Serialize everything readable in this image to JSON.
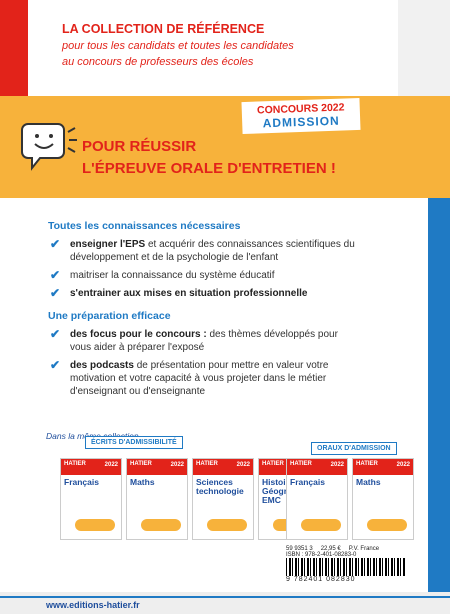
{
  "header": {
    "title": "LA COLLECTION DE RÉFÉRENCE",
    "lines": [
      "pour tous les candidats et toutes les candidates",
      "au concours de professeurs des écoles"
    ]
  },
  "badge": {
    "line1": "CONCOURS 2022",
    "line2": "ADMISSION"
  },
  "headline": [
    "POUR RÉUSSIR",
    "L'ÉPREUVE ORALE D'ENTRETIEN !"
  ],
  "sections": [
    {
      "title": "Toutes les connaissances nécessaires",
      "items": [
        {
          "bold": "enseigner l'EPS",
          "text": " et acquérir des connaissances scientifiques du développement et de la psychologie de l'enfant"
        },
        {
          "text": "maitriser la connaissance du système éducatif"
        },
        {
          "bold": "s'entrainer aux mises en situation professionnelle"
        }
      ]
    },
    {
      "title": "Une préparation efficace",
      "items": [
        {
          "bold": "des focus pour le concours :",
          "text": " des thèmes développés pour vous aider à préparer l'exposé"
        },
        {
          "bold": "des podcasts",
          "text": " de présentation pour mettre en valeur votre motivation et votre capacité à vous projeter dans le métier d'enseignant ou d'enseignante"
        }
      ]
    }
  ],
  "collection": {
    "intro": "Dans la même collection",
    "brand": "HATIER",
    "year": "2022",
    "groups": [
      {
        "title": "ÉCRITS D'ADMISSIBILITÉ",
        "books": [
          "Français",
          "Maths",
          "Sciences technologie",
          "Histoire Géographie EMC"
        ]
      },
      {
        "title": "ORAUX D'ADMISSION",
        "books": [
          "Français",
          "Maths"
        ]
      }
    ]
  },
  "barcode": {
    "code": "59 9351 3",
    "price": "22,95 €",
    "pv": "P.V. France",
    "isbn": "ISBN : 978-2-401-08283-0",
    "digits": "9 782401 082830"
  },
  "website": "www.editions-hatier.fr"
}
